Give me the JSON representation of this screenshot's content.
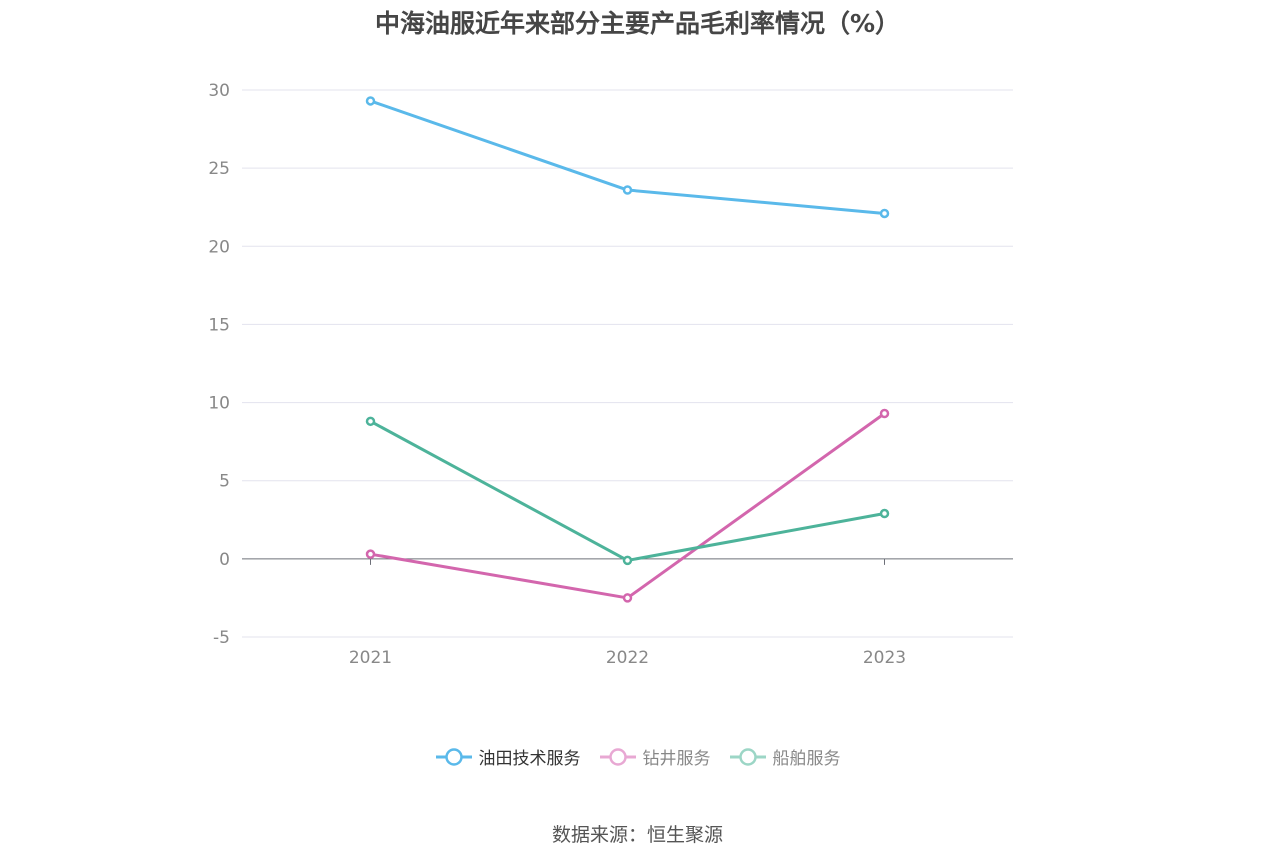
{
  "chart_data": {
    "type": "line",
    "title": "中海油服近年来部分主要产品毛利率情况（%）",
    "categories": [
      "2021",
      "2022",
      "2023"
    ],
    "series": [
      {
        "name": "油田技术服务",
        "color": "#5ab9ea",
        "values": [
          29.3,
          23.6,
          22.1
        ]
      },
      {
        "name": "钻井服务",
        "color": "#d366ad",
        "values": [
          0.3,
          -2.5,
          9.3
        ]
      },
      {
        "name": "船舶服务",
        "color": "#4db39a",
        "values": [
          8.8,
          -0.1,
          2.9
        ]
      }
    ],
    "yticks": [
      30,
      25,
      20,
      15,
      10,
      5,
      0,
      -5
    ],
    "ylim": [
      -5,
      30
    ],
    "grid": true,
    "legend_position": "bottom"
  },
  "legend": {
    "items": [
      {
        "label": "油田技术服务",
        "color": "#5ab9ea"
      },
      {
        "label": "钻井服务",
        "color": "#e8a8d3"
      },
      {
        "label": "船舶服务",
        "color": "#9cd6c6"
      }
    ]
  },
  "source": "数据来源：恒生聚源"
}
